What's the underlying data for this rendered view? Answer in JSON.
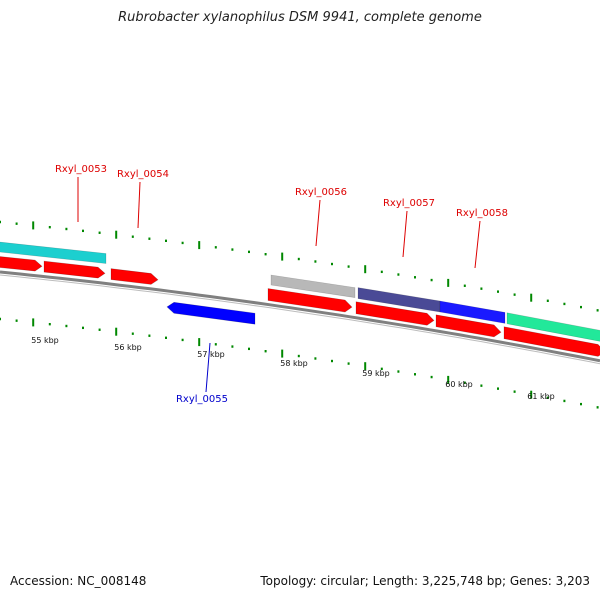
{
  "title": "Rubrobacter xylanophilus DSM 9941, complete genome",
  "footer": {
    "accession": "Accession: NC_008148",
    "summary": "Topology: circular; Length: 3,225,748 bp; Genes: 3,203"
  },
  "kbp_labels": [
    "55 kbp",
    "56 kbp",
    "57 kbp",
    "58 kbp",
    "59 kbp",
    "60 kbp",
    "61 kbp"
  ],
  "gene_labels": [
    {
      "id": "Rxyl_0053",
      "text": "Rxyl_0053",
      "color": "#dd0000"
    },
    {
      "id": "Rxyl_0054",
      "text": "Rxyl_0054",
      "color": "#dd0000"
    },
    {
      "id": "Rxyl_0055",
      "text": "Rxyl_0055",
      "color": "#0000cc"
    },
    {
      "id": "Rxyl_0056",
      "text": "Rxyl_0056",
      "color": "#dd0000"
    },
    {
      "id": "Rxyl_0057",
      "text": "Rxyl_0057",
      "color": "#dd0000"
    },
    {
      "id": "Rxyl_0058",
      "text": "Rxyl_0058",
      "color": "#dd0000"
    }
  ],
  "colors": {
    "forward_cds": "#ff0000",
    "reverse_cds": "#0000ff",
    "backbone": "#808080",
    "tick": "#008800",
    "cog_cyan": "#1ccfcf",
    "cog_gray": "#b8b8b8",
    "cog_slate": "#4a4a96",
    "cog_blue": "#1a1aff",
    "cog_green": "#22e89a"
  }
}
